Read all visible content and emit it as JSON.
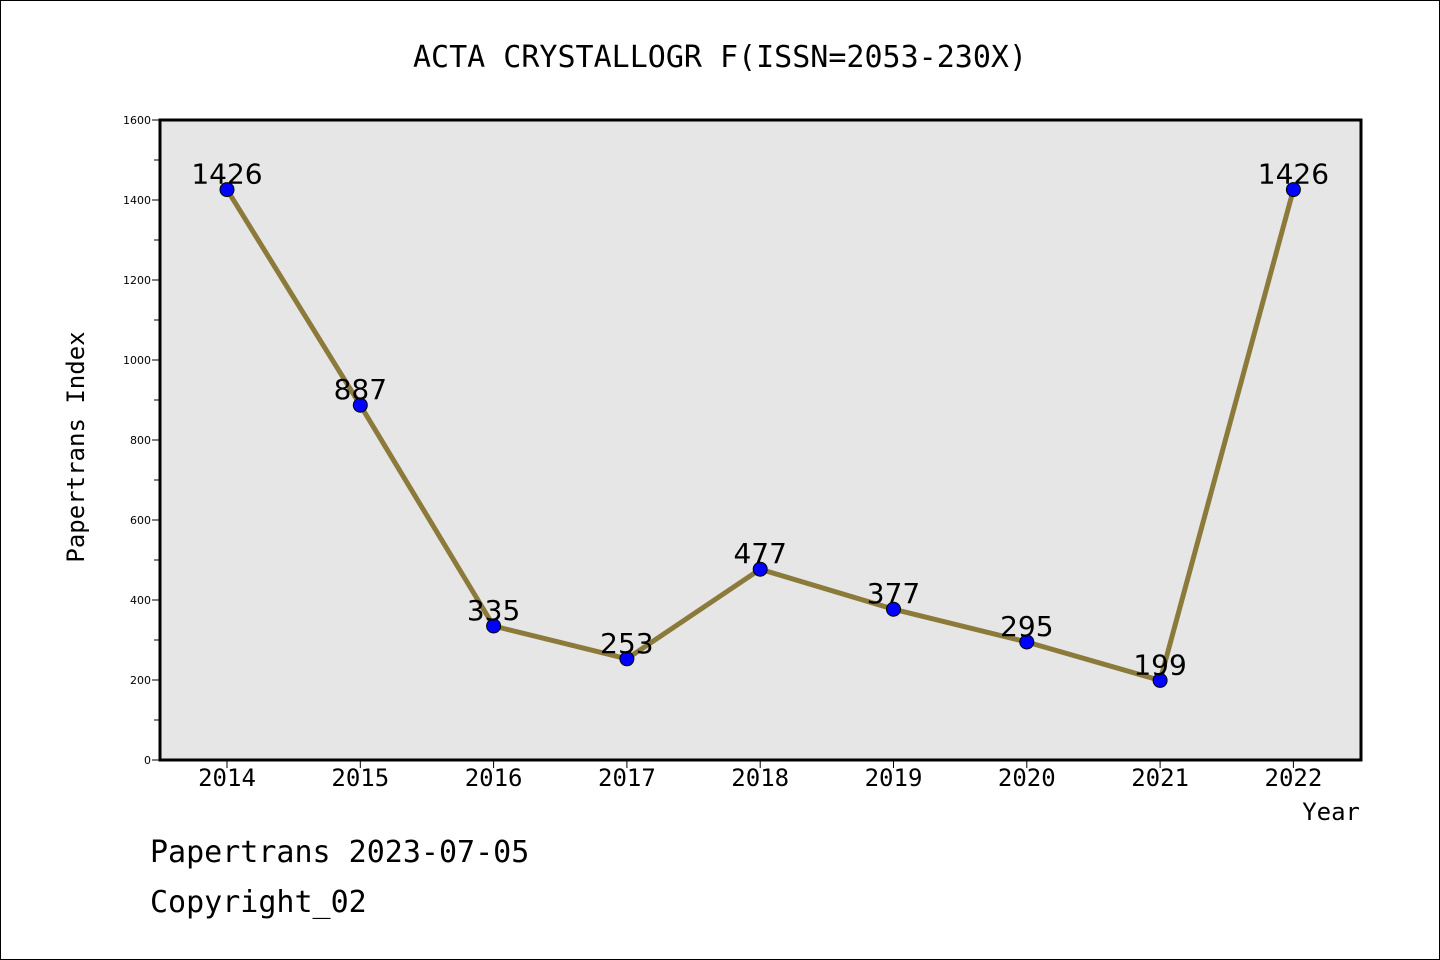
{
  "chart_data": {
    "type": "line",
    "title": "ACTA CRYSTALLOGR F(ISSN=2053-230X)",
    "xlabel": "Year",
    "ylabel": "Papertrans Index",
    "categories": [
      "2014",
      "2015",
      "2016",
      "2017",
      "2018",
      "2019",
      "2020",
      "2021",
      "2022"
    ],
    "series": [
      {
        "values": [
          1426,
          887,
          335,
          253,
          477,
          377,
          295,
          199,
          1426
        ]
      }
    ],
    "ylim": [
      0,
      1600
    ],
    "yticks": [
      0,
      200,
      400,
      600,
      800,
      1000,
      1200,
      1400,
      1600
    ],
    "grid": false,
    "colors": {
      "line": "#8c7a3a",
      "marker": "#0000ff",
      "plot_bg": "#e6e6e6"
    }
  },
  "footer": {
    "date_text": "Papertrans 2023-07-05",
    "copyright_text": "Copyright_02"
  }
}
